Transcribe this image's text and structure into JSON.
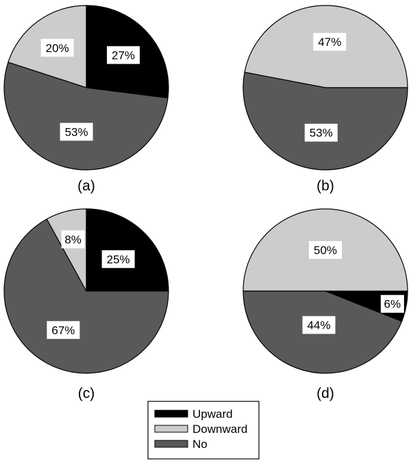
{
  "categories": [
    "Upward",
    "Downward",
    "No"
  ],
  "colors": {
    "Upward": "#000000",
    "Downward": "#cccccc",
    "No": "#595959"
  },
  "legend": {
    "placement": "bottom-center",
    "items": [
      "Upward",
      "Downward",
      "No"
    ]
  },
  "chart_data": [
    {
      "type": "pie",
      "caption": "(a)",
      "slices": [
        {
          "category": "Upward",
          "value": 27,
          "label": "27%"
        },
        {
          "category": "Downward",
          "value": 20,
          "label": "20%"
        },
        {
          "category": "No",
          "value": 53,
          "label": "53%"
        }
      ]
    },
    {
      "type": "pie",
      "caption": "(b)",
      "slices": [
        {
          "category": "Upward",
          "value": 0,
          "label": ""
        },
        {
          "category": "Downward",
          "value": 47,
          "label": "47%"
        },
        {
          "category": "No",
          "value": 53,
          "label": "53%"
        }
      ]
    },
    {
      "type": "pie",
      "caption": "(c)",
      "slices": [
        {
          "category": "Upward",
          "value": 25,
          "label": "25%"
        },
        {
          "category": "Downward",
          "value": 8,
          "label": "8%"
        },
        {
          "category": "No",
          "value": 67,
          "label": "67%"
        }
      ]
    },
    {
      "type": "pie",
      "caption": "(d)",
      "slices": [
        {
          "category": "Upward",
          "value": 6,
          "label": "6%"
        },
        {
          "category": "Downward",
          "value": 50,
          "label": "50%"
        },
        {
          "category": "No",
          "value": 44,
          "label": "44%"
        }
      ]
    }
  ]
}
